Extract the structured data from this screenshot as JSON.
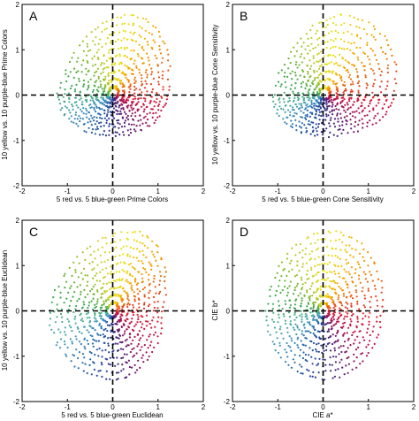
{
  "chart_data": [
    {
      "type": "scatter",
      "panel_label": "A",
      "xlabel": "5 red vs. 5 blue-green Prime Colors",
      "ylabel": "10 yellow vs. 10 purple-blue Prime Colors",
      "xlim": [
        -2,
        2
      ],
      "ylim": [
        -2,
        2
      ],
      "xticks": [
        "-2",
        "-1",
        "0",
        "1",
        "2"
      ],
      "yticks": [
        "-2",
        "-1",
        "0",
        "1",
        "2"
      ],
      "shape": {
        "yellow_peak": 1.75,
        "red_extent": 1.2,
        "bluegreen_extent": 1.2,
        "bottom_extent": 0.9,
        "yellow_x_offset": 0.35
      },
      "crosshair": {
        "x": 0,
        "y": 0,
        "style": "dashed"
      }
    },
    {
      "type": "scatter",
      "panel_label": "B",
      "xlabel": "5 red vs. 5 blue-green Cone Sensitivity",
      "ylabel": "10 yellow vs. 10 purple-blue Cone Sensitivity",
      "xlim": [
        -2,
        2
      ],
      "ylim": [
        -2,
        2
      ],
      "xticks": [
        "-2",
        "-1",
        "0",
        "1",
        "2"
      ],
      "yticks": [
        "-2",
        "-1",
        "0",
        "1",
        "2"
      ],
      "shape": {
        "yellow_peak": 1.75,
        "red_extent": 1.55,
        "bluegreen_extent": 1.1,
        "bottom_extent": 0.9,
        "yellow_x_offset": 0.4
      },
      "crosshair": {
        "x": 0,
        "y": 0,
        "style": "dashed"
      }
    },
    {
      "type": "scatter",
      "panel_label": "C",
      "xlabel": "5 red vs. 5 blue-green Euclidean",
      "ylabel": "10 yellow vs. 10 purple-blue Euclidean",
      "xlim": [
        -2,
        2
      ],
      "ylim": [
        -2,
        2
      ],
      "xticks": [
        "-2",
        "-1",
        "0",
        "1",
        "2"
      ],
      "yticks": [
        "-2",
        "-1",
        "0",
        "1",
        "2"
      ],
      "shape": {
        "yellow_peak": 1.75,
        "red_extent": 1.1,
        "bluegreen_extent": 1.4,
        "bottom_extent": 1.5,
        "yellow_x_offset": 0.4
      },
      "crosshair": {
        "x": 0,
        "y": 0,
        "style": "dashed"
      }
    },
    {
      "type": "scatter",
      "panel_label": "D",
      "xlabel": "CIE a*",
      "ylabel": "CIE b*",
      "xlim": [
        -2,
        2
      ],
      "ylim": [
        -2,
        2
      ],
      "xticks": [
        "-2",
        "-1",
        "0",
        "1",
        "2"
      ],
      "yticks": [
        "-2",
        "-1",
        "0",
        "1",
        "2"
      ],
      "shape": {
        "yellow_peak": 1.75,
        "red_extent": 1.3,
        "bluegreen_extent": 1.25,
        "bottom_extent": 1.5,
        "yellow_x_offset": 0.15
      },
      "crosshair": {
        "x": 0,
        "y": 0,
        "style": "dashed"
      }
    }
  ],
  "colors": {
    "hue_wheel": [
      "#e8e31c",
      "#f5b700",
      "#f28a00",
      "#e8451c",
      "#d81b3c",
      "#b5124f",
      "#6a1b6e",
      "#2c2f8a",
      "#1f5fa8",
      "#3f91bf",
      "#4fae9c",
      "#3aa845",
      "#8fbf2a",
      "#d4d62b"
    ],
    "axes": "#000000"
  }
}
